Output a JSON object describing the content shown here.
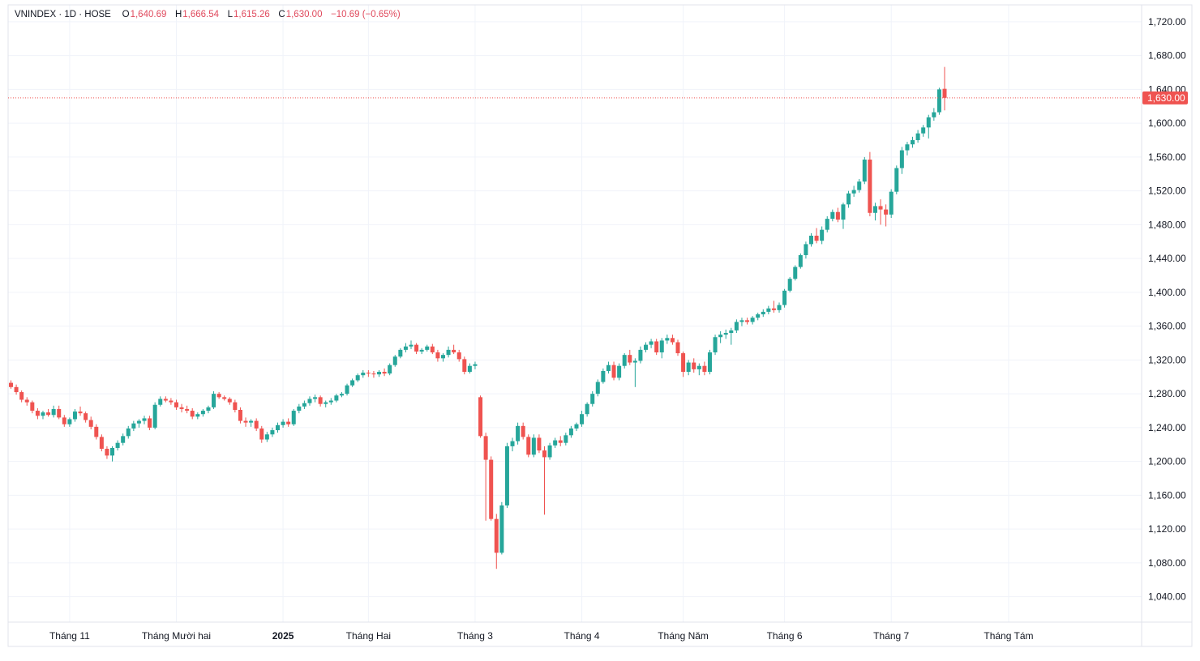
{
  "chart_data": {
    "type": "candlestick",
    "title": "VNINDEX · 1D · HOSE",
    "ohlc_header": {
      "open_label": "O",
      "open": "1,640.69",
      "high_label": "H",
      "high": "1,666.54",
      "low_label": "L",
      "low": "1,615.26",
      "close_label": "C",
      "close": "1,630.00",
      "change": "−10.69 (−0.65%)"
    },
    "last_price_label": "1,630.00",
    "last_price": 1630,
    "ylim": [
      1010,
      1740
    ],
    "y_ticks": [
      1040,
      1080,
      1120,
      1160,
      1200,
      1240,
      1280,
      1320,
      1360,
      1400,
      1440,
      1480,
      1520,
      1560,
      1600,
      1640,
      1680,
      1720
    ],
    "y_tick_labels": [
      "1,040.00",
      "1,080.00",
      "1,120.00",
      "1,160.00",
      "1,200.00",
      "1,240.00",
      "1,280.00",
      "1,320.00",
      "1,360.00",
      "1,400.00",
      "1,440.00",
      "1,480.00",
      "1,520.00",
      "1,560.00",
      "1,600.00",
      "1,640.00",
      "1,680.00",
      "1,720.00"
    ],
    "x_ticks": [
      {
        "label": "Tháng 11",
        "index": 11,
        "bold": false
      },
      {
        "label": "Tháng Mười hai",
        "index": 31,
        "bold": false
      },
      {
        "label": "2025",
        "index": 51,
        "bold": true
      },
      {
        "label": "Tháng Hai",
        "index": 67,
        "bold": false
      },
      {
        "label": "Tháng 3",
        "index": 87,
        "bold": false
      },
      {
        "label": "Tháng 4",
        "index": 107,
        "bold": false
      },
      {
        "label": "Tháng Năm",
        "index": 126,
        "bold": false
      },
      {
        "label": "Tháng 6",
        "index": 145,
        "bold": false
      },
      {
        "label": "Tháng 7",
        "index": 165,
        "bold": false
      },
      {
        "label": "Tháng Tám",
        "index": 187,
        "bold": false
      }
    ],
    "colors": {
      "up": "#26a69a",
      "down": "#ef5350",
      "grid": "#f0f3fa",
      "price_line": "#ef5350"
    },
    "candles": [
      [
        1293,
        1296,
        1286,
        1288
      ],
      [
        1288,
        1291,
        1279,
        1282
      ],
      [
        1282,
        1284,
        1270,
        1273
      ],
      [
        1273,
        1276,
        1266,
        1270
      ],
      [
        1270,
        1272,
        1257,
        1260
      ],
      [
        1260,
        1263,
        1250,
        1254
      ],
      [
        1254,
        1260,
        1250,
        1258
      ],
      [
        1258,
        1262,
        1253,
        1255
      ],
      [
        1255,
        1266,
        1252,
        1262
      ],
      [
        1262,
        1266,
        1250,
        1252
      ],
      [
        1252,
        1255,
        1241,
        1244
      ],
      [
        1244,
        1252,
        1241,
        1250
      ],
      [
        1250,
        1262,
        1247,
        1259
      ],
      [
        1259,
        1265,
        1254,
        1257
      ],
      [
        1257,
        1259,
        1246,
        1249
      ],
      [
        1249,
        1253,
        1238,
        1241
      ],
      [
        1241,
        1244,
        1226,
        1229
      ],
      [
        1229,
        1232,
        1212,
        1215
      ],
      [
        1215,
        1218,
        1203,
        1207
      ],
      [
        1207,
        1218,
        1200,
        1216
      ],
      [
        1216,
        1225,
        1213,
        1222
      ],
      [
        1222,
        1233,
        1219,
        1230
      ],
      [
        1230,
        1242,
        1227,
        1239
      ],
      [
        1239,
        1248,
        1236,
        1245
      ],
      [
        1245,
        1250,
        1240,
        1248
      ],
      [
        1248,
        1254,
        1244,
        1251
      ],
      [
        1251,
        1254,
        1237,
        1240
      ],
      [
        1240,
        1270,
        1238,
        1267
      ],
      [
        1267,
        1277,
        1265,
        1274
      ],
      [
        1274,
        1277,
        1270,
        1272
      ],
      [
        1272,
        1275,
        1267,
        1270
      ],
      [
        1270,
        1273,
        1261,
        1264
      ],
      [
        1264,
        1268,
        1258,
        1262
      ],
      [
        1262,
        1266,
        1257,
        1260
      ],
      [
        1260,
        1263,
        1250,
        1253
      ],
      [
        1253,
        1258,
        1250,
        1256
      ],
      [
        1256,
        1262,
        1253,
        1260
      ],
      [
        1260,
        1266,
        1257,
        1264
      ],
      [
        1264,
        1283,
        1262,
        1280
      ],
      [
        1280,
        1282,
        1274,
        1276
      ],
      [
        1276,
        1278,
        1272,
        1274
      ],
      [
        1274,
        1276,
        1267,
        1270
      ],
      [
        1270,
        1273,
        1258,
        1261
      ],
      [
        1261,
        1264,
        1245,
        1248
      ],
      [
        1248,
        1252,
        1241,
        1246
      ],
      [
        1246,
        1250,
        1241,
        1248
      ],
      [
        1248,
        1251,
        1236,
        1239
      ],
      [
        1239,
        1242,
        1222,
        1226
      ],
      [
        1226,
        1235,
        1223,
        1232
      ],
      [
        1232,
        1240,
        1229,
        1237
      ],
      [
        1237,
        1246,
        1234,
        1243
      ],
      [
        1243,
        1250,
        1240,
        1247
      ],
      [
        1247,
        1251,
        1241,
        1244
      ],
      [
        1244,
        1262,
        1242,
        1260
      ],
      [
        1260,
        1268,
        1257,
        1265
      ],
      [
        1265,
        1272,
        1262,
        1269
      ],
      [
        1269,
        1277,
        1266,
        1274
      ],
      [
        1274,
        1279,
        1270,
        1276
      ],
      [
        1276,
        1278,
        1265,
        1268
      ],
      [
        1268,
        1272,
        1264,
        1270
      ],
      [
        1270,
        1275,
        1267,
        1272
      ],
      [
        1272,
        1280,
        1270,
        1278
      ],
      [
        1278,
        1282,
        1276,
        1280
      ],
      [
        1280,
        1292,
        1278,
        1290
      ],
      [
        1290,
        1298,
        1288,
        1296
      ],
      [
        1296,
        1304,
        1294,
        1302
      ],
      [
        1302,
        1308,
        1299,
        1305
      ],
      [
        1305,
        1308,
        1300,
        1304
      ],
      [
        1304,
        1307,
        1299,
        1303
      ],
      [
        1303,
        1308,
        1300,
        1306
      ],
      [
        1306,
        1310,
        1301,
        1304
      ],
      [
        1304,
        1316,
        1302,
        1314
      ],
      [
        1314,
        1326,
        1312,
        1324
      ],
      [
        1324,
        1334,
        1322,
        1332
      ],
      [
        1332,
        1340,
        1329,
        1336
      ],
      [
        1336,
        1343,
        1333,
        1338
      ],
      [
        1338,
        1340,
        1327,
        1330
      ],
      [
        1330,
        1334,
        1327,
        1332
      ],
      [
        1332,
        1338,
        1330,
        1336
      ],
      [
        1336,
        1339,
        1327,
        1329
      ],
      [
        1329,
        1332,
        1318,
        1322
      ],
      [
        1322,
        1328,
        1318,
        1326
      ],
      [
        1326,
        1336,
        1323,
        1332
      ],
      [
        1332,
        1338,
        1327,
        1329
      ],
      [
        1329,
        1332,
        1318,
        1321
      ],
      [
        1321,
        1324,
        1303,
        1306
      ],
      [
        1306,
        1316,
        1304,
        1313
      ],
      [
        1313,
        1318,
        1309,
        1315
      ],
      [
        1276,
        1278,
        1228,
        1230
      ],
      [
        1230,
        1234,
        1130,
        1202
      ],
      [
        1202,
        1206,
        1130,
        1132
      ],
      [
        1132,
        1138,
        1073,
        1092
      ],
      [
        1092,
        1152,
        1090,
        1148
      ],
      [
        1148,
        1222,
        1145,
        1218
      ],
      [
        1218,
        1228,
        1212,
        1224
      ],
      [
        1224,
        1246,
        1220,
        1242
      ],
      [
        1242,
        1246,
        1226,
        1229
      ],
      [
        1229,
        1232,
        1205,
        1208
      ],
      [
        1208,
        1232,
        1205,
        1228
      ],
      [
        1228,
        1232,
        1210,
        1213
      ],
      [
        1213,
        1218,
        1137,
        1205
      ],
      [
        1205,
        1222,
        1202,
        1219
      ],
      [
        1219,
        1228,
        1216,
        1225
      ],
      [
        1225,
        1230,
        1218,
        1222
      ],
      [
        1222,
        1234,
        1219,
        1231
      ],
      [
        1231,
        1242,
        1228,
        1239
      ],
      [
        1239,
        1246,
        1236,
        1244
      ],
      [
        1244,
        1260,
        1241,
        1256
      ],
      [
        1256,
        1270,
        1253,
        1268
      ],
      [
        1268,
        1283,
        1265,
        1280
      ],
      [
        1280,
        1297,
        1277,
        1294
      ],
      [
        1294,
        1310,
        1292,
        1307
      ],
      [
        1307,
        1318,
        1304,
        1314
      ],
      [
        1314,
        1318,
        1296,
        1299
      ],
      [
        1299,
        1316,
        1296,
        1313
      ],
      [
        1313,
        1328,
        1310,
        1326
      ],
      [
        1326,
        1332,
        1314,
        1317
      ],
      [
        1317,
        1322,
        1288,
        1319
      ],
      [
        1319,
        1336,
        1316,
        1332
      ],
      [
        1332,
        1341,
        1329,
        1338
      ],
      [
        1338,
        1345,
        1334,
        1342
      ],
      [
        1342,
        1345,
        1326,
        1329
      ],
      [
        1329,
        1346,
        1322,
        1343
      ],
      [
        1343,
        1350,
        1339,
        1346
      ],
      [
        1346,
        1350,
        1338,
        1341
      ],
      [
        1341,
        1344,
        1325,
        1328
      ],
      [
        1328,
        1330,
        1300,
        1306
      ],
      [
        1306,
        1320,
        1302,
        1317
      ],
      [
        1317,
        1322,
        1305,
        1309
      ],
      [
        1309,
        1316,
        1302,
        1313
      ],
      [
        1313,
        1318,
        1302,
        1306
      ],
      [
        1306,
        1332,
        1303,
        1329
      ],
      [
        1329,
        1350,
        1326,
        1347
      ],
      [
        1347,
        1354,
        1340,
        1350
      ],
      [
        1350,
        1356,
        1345,
        1352
      ],
      [
        1352,
        1358,
        1338,
        1355
      ],
      [
        1355,
        1368,
        1352,
        1365
      ],
      [
        1365,
        1370,
        1360,
        1367
      ],
      [
        1367,
        1370,
        1362,
        1365
      ],
      [
        1365,
        1372,
        1362,
        1370
      ],
      [
        1370,
        1376,
        1367,
        1374
      ],
      [
        1374,
        1380,
        1371,
        1377
      ],
      [
        1377,
        1384,
        1374,
        1381
      ],
      [
        1381,
        1390,
        1376,
        1379
      ],
      [
        1379,
        1388,
        1376,
        1385
      ],
      [
        1385,
        1404,
        1382,
        1402
      ],
      [
        1402,
        1418,
        1400,
        1416
      ],
      [
        1416,
        1432,
        1414,
        1430
      ],
      [
        1430,
        1446,
        1428,
        1444
      ],
      [
        1444,
        1460,
        1440,
        1457
      ],
      [
        1457,
        1470,
        1454,
        1467
      ],
      [
        1467,
        1476,
        1458,
        1461
      ],
      [
        1461,
        1478,
        1457,
        1474
      ],
      [
        1474,
        1490,
        1471,
        1487
      ],
      [
        1487,
        1498,
        1484,
        1495
      ],
      [
        1495,
        1500,
        1483,
        1486
      ],
      [
        1486,
        1506,
        1475,
        1504
      ],
      [
        1504,
        1520,
        1500,
        1517
      ],
      [
        1517,
        1526,
        1513,
        1521
      ],
      [
        1521,
        1534,
        1518,
        1531
      ],
      [
        1531,
        1560,
        1528,
        1557
      ],
      [
        1557,
        1566,
        1490,
        1494
      ],
      [
        1494,
        1506,
        1485,
        1502
      ],
      [
        1502,
        1510,
        1480,
        1498
      ],
      [
        1498,
        1504,
        1478,
        1492
      ],
      [
        1492,
        1522,
        1488,
        1519
      ],
      [
        1519,
        1550,
        1516,
        1547
      ],
      [
        1547,
        1572,
        1540,
        1568
      ],
      [
        1568,
        1578,
        1562,
        1575
      ],
      [
        1575,
        1584,
        1571,
        1580
      ],
      [
        1580,
        1592,
        1577,
        1588
      ],
      [
        1588,
        1598,
        1584,
        1595
      ],
      [
        1595,
        1610,
        1582,
        1607
      ],
      [
        1607,
        1618,
        1603,
        1613
      ],
      [
        1613,
        1642,
        1610,
        1640
      ],
      [
        1640.69,
        1666.54,
        1615.26,
        1630
      ]
    ]
  }
}
